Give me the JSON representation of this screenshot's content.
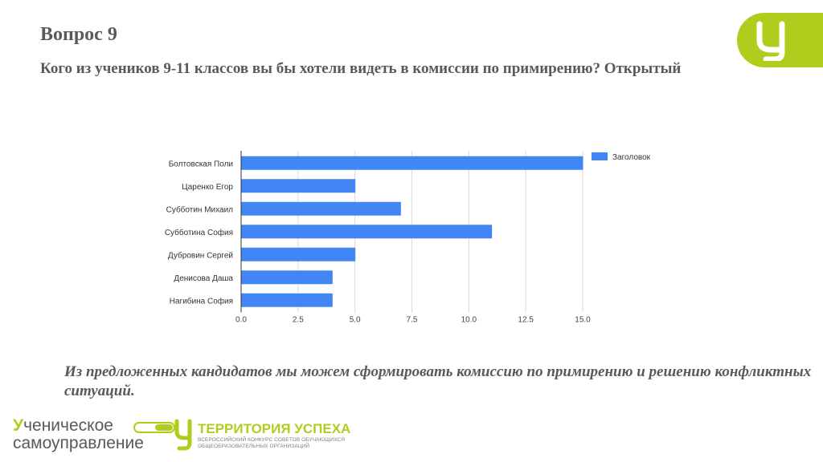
{
  "slide": {
    "title": "Вопрос 9",
    "question": "Кого из учеников 9-11 классов вы бы хотели видеть в комиссии по примирению? Открытый",
    "conclusion": "Из  предложенных кандидатов мы можем сформировать комиссию по примирению и решению конфликтных ситуаций."
  },
  "colors": {
    "accent": "#b1cc1c",
    "bar": "#4285f4",
    "text": "#595959",
    "grid": "#d9d9d9"
  },
  "chart_data": {
    "type": "bar",
    "orientation": "horizontal",
    "categories": [
      "Болтовская Поли",
      "Царенко Егор",
      "Субботин Михаил",
      "Субботина София",
      "Дубровин Сергей",
      "Денисова Даша",
      "Нагибина София"
    ],
    "series": [
      {
        "name": "Заголовок",
        "values": [
          15,
          5,
          7,
          11,
          5,
          4,
          4
        ]
      }
    ],
    "xlim": [
      0,
      15
    ],
    "xticks": [
      "0.0",
      "2.5",
      "5.0",
      "7.5",
      "10.0",
      "12.5",
      "15.0"
    ],
    "grid": true,
    "legend_position": "top-right"
  },
  "footer": {
    "logo1": {
      "line1": "ченическое",
      "letter": "У",
      "line2": "самоуправление"
    },
    "logo2": {
      "title": "ТЕРРИТОРИЯ УСПЕХА",
      "sub1": "ВСЕРОССИЙСКИЙ КОНКУРС СОВЕТОВ ОБУЧАЮЩИХСЯ",
      "sub2": "ОБЩЕОБРАЗОВАТЕЛЬНЫХ ОРГАНИЗАЦИЙ"
    }
  }
}
